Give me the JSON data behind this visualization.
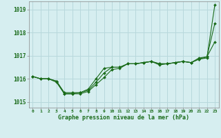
{
  "xlabel": "Graphe pression niveau de la mer (hPa)",
  "background_color": "#d6eef0",
  "grid_color": "#b8d8dc",
  "line_color": "#1a6b1a",
  "marker_color": "#1a6b1a",
  "xlim": [
    -0.5,
    23.5
  ],
  "ylim": [
    1014.75,
    1019.35
  ],
  "yticks": [
    1015,
    1016,
    1017,
    1018,
    1019
  ],
  "xtick_labels": [
    "0",
    "1",
    "2",
    "3",
    "4",
    "5",
    "6",
    "7",
    "8",
    "9",
    "10",
    "11",
    "12",
    "13",
    "14",
    "15",
    "16",
    "17",
    "18",
    "19",
    "20",
    "21",
    "22",
    "23"
  ],
  "series": [
    [
      1016.1,
      1016.0,
      1016.0,
      1015.9,
      1015.35,
      1015.35,
      1015.35,
      1015.45,
      1015.75,
      1016.05,
      1016.4,
      1016.45,
      1016.65,
      1016.65,
      1016.7,
      1016.75,
      1016.6,
      1016.65,
      1016.7,
      1016.75,
      1016.7,
      1016.85,
      1016.9,
      1019.2
    ],
    [
      1016.1,
      1016.0,
      1016.0,
      1015.85,
      1015.35,
      1015.35,
      1015.4,
      1015.55,
      1016.0,
      1016.45,
      1016.5,
      1016.5,
      1016.65,
      1016.65,
      1016.7,
      1016.75,
      1016.65,
      1016.65,
      1016.7,
      1016.75,
      1016.7,
      1016.9,
      1016.95,
      1017.6
    ],
    [
      1016.1,
      1016.0,
      1016.0,
      1015.9,
      1015.4,
      1015.4,
      1015.4,
      1015.5,
      1015.85,
      1016.25,
      1016.5,
      1016.5,
      1016.65,
      1016.65,
      1016.7,
      1016.75,
      1016.65,
      1016.65,
      1016.7,
      1016.75,
      1016.7,
      1016.85,
      1016.95,
      1018.4
    ]
  ]
}
